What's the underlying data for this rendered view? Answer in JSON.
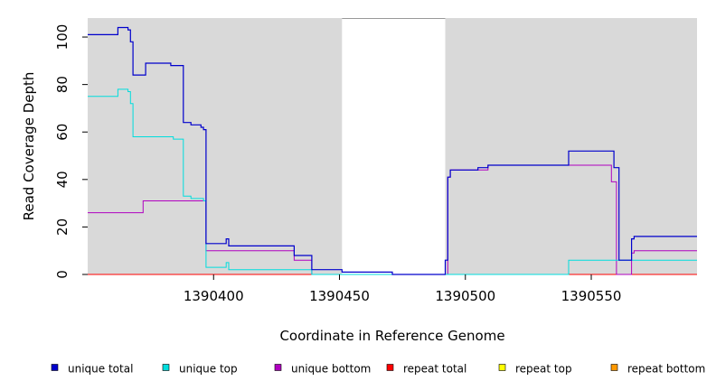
{
  "chart_data": {
    "type": "line",
    "step": true,
    "xlabel": "Coordinate in Reference Genome",
    "ylabel": "Read Coverage Depth",
    "xlim": [
      1390350,
      1390592
    ],
    "ylim": [
      0,
      108
    ],
    "x_ticks": [
      1390400,
      1390450,
      1390500,
      1390550
    ],
    "x_tick_labels": [
      "1390400",
      "1390450",
      "1390500",
      "1390550"
    ],
    "y_ticks": [
      0,
      20,
      40,
      60,
      80,
      100
    ],
    "y_tick_labels": [
      "0",
      "20",
      "40",
      "60",
      "80",
      "100"
    ],
    "background": "#d9d9d9",
    "uncovered_region": [
      1390451,
      1390492
    ],
    "uncovered_color": "#ffffff",
    "legend_position": "bottom",
    "series": [
      {
        "name": "unique total",
        "color": "#0000cc",
        "x": [
          1390350,
          1390362,
          1390366,
          1390367,
          1390368,
          1390371,
          1390373,
          1390383,
          1390388,
          1390391,
          1390395,
          1390396,
          1390397,
          1390405,
          1390406,
          1390407,
          1390432,
          1390439,
          1390451,
          1390471,
          1390492,
          1390493,
          1390494,
          1390505,
          1390509,
          1390541,
          1390559,
          1390561,
          1390566,
          1390567,
          1390592
        ],
        "y": [
          101,
          104,
          103,
          98,
          84,
          84,
          89,
          88,
          64,
          63,
          62,
          61,
          13,
          15,
          12,
          12,
          8,
          2,
          1,
          0,
          6,
          41,
          44,
          45,
          46,
          52,
          45,
          6,
          15,
          16,
          16
        ]
      },
      {
        "name": "unique top",
        "color": "#00dddd",
        "x": [
          1390350,
          1390362,
          1390366,
          1390367,
          1390368,
          1390384,
          1390388,
          1390391,
          1390396,
          1390397,
          1390405,
          1390406,
          1390432,
          1390439,
          1390541,
          1390592
        ],
        "y": [
          75,
          78,
          77,
          72,
          58,
          57,
          33,
          32,
          31,
          3,
          5,
          2,
          2,
          0,
          6,
          6
        ]
      },
      {
        "name": "unique bottom",
        "color": "#b000c0",
        "x": [
          1390350,
          1390372,
          1390397,
          1390432,
          1390439,
          1390492,
          1390493,
          1390494,
          1390509,
          1390558,
          1390560,
          1390566,
          1390567,
          1390592
        ],
        "y": [
          26,
          31,
          10,
          6,
          0,
          0,
          41,
          44,
          46,
          39,
          0,
          9,
          10,
          10
        ]
      },
      {
        "name": "repeat total",
        "color": "#ff0000",
        "x": [
          1390350,
          1390592
        ],
        "y": [
          0,
          0
        ]
      },
      {
        "name": "repeat top",
        "color": "#ffff00",
        "x": [
          1390350,
          1390592
        ],
        "y": [
          0,
          0
        ]
      },
      {
        "name": "repeat bottom",
        "color": "#ff9900",
        "x": [
          1390350,
          1390592
        ],
        "y": [
          0,
          0
        ]
      }
    ]
  }
}
